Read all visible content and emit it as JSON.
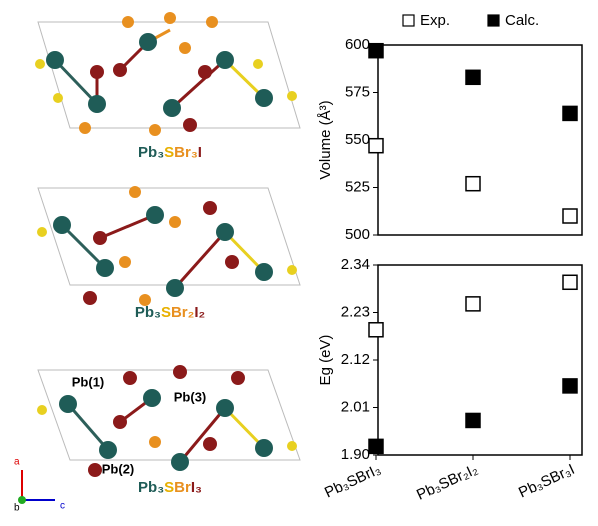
{
  "structures": [
    {
      "label_parts": [
        "Pb₃",
        "S",
        "Br₃",
        "I"
      ]
    },
    {
      "label_parts": [
        "Pb₃",
        "S",
        "Br₂",
        "I₂"
      ]
    },
    {
      "label_parts": [
        "Pb₃",
        "S",
        "Br",
        "I₃"
      ],
      "site_labels": [
        "Pb(1)",
        "Pb(2)",
        "Pb(3)"
      ]
    }
  ],
  "axes_labels": [
    "a",
    "b",
    "c"
  ],
  "chart_data": [
    {
      "type": "scatter",
      "y_label": "Volume (Å³)",
      "categories": [
        null,
        null,
        null
      ],
      "series": [
        {
          "name": "Exp.",
          "color": "#000000",
          "filled": false,
          "values": [
            547,
            527,
            510
          ]
        },
        {
          "name": "Calc.",
          "color": "#000000",
          "filled": true,
          "values": [
            597,
            583,
            564
          ]
        }
      ],
      "ylim": [
        500,
        600
      ],
      "yticks": [
        500,
        525,
        550,
        575,
        600
      ]
    },
    {
      "type": "scatter",
      "y_label": "Eg (eV)",
      "categories": [
        "Pb₃SBrI₃",
        "Pb₃SBr₂I₂",
        "Pb₃SBr₃I"
      ],
      "series": [
        {
          "color": "#000000",
          "filled": false,
          "values": [
            2.19,
            2.25,
            2.3
          ]
        },
        {
          "color": "#000000",
          "filled": true,
          "values": [
            1.92,
            1.98,
            2.06
          ]
        }
      ],
      "ylim": [
        1.9,
        2.34
      ],
      "yticks": [
        {
          "value": 1.9,
          "label": "1.90"
        },
        2.01,
        2.12,
        2.23,
        2.34
      ]
    }
  ]
}
